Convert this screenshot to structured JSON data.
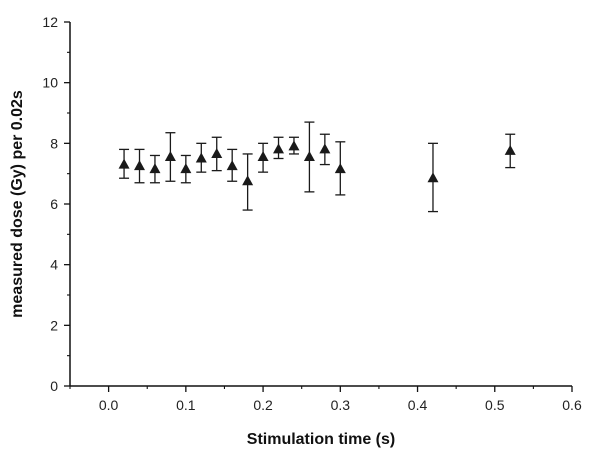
{
  "chart_data": {
    "type": "scatter",
    "xlabel": "Stimulation time (s)",
    "ylabel": "measured dose (Gy) per 0.02s",
    "xlim": [
      -0.05,
      0.6
    ],
    "ylim": [
      0,
      12
    ],
    "x_ticks": [
      0.0,
      0.1,
      0.2,
      0.3,
      0.4,
      0.5,
      0.6
    ],
    "x_tick_labels": [
      "0.0",
      "0.1",
      "0.2",
      "0.3",
      "0.4",
      "0.5",
      "0.6"
    ],
    "y_ticks": [
      0,
      2,
      4,
      6,
      8,
      10,
      12
    ],
    "y_tick_labels": [
      "0",
      "2",
      "4",
      "6",
      "8",
      "10",
      "12"
    ],
    "grid": false,
    "legend": "none",
    "marker": "triangle-up",
    "marker_color": "#1a1a1a",
    "series": [
      {
        "x": [
          0.02,
          0.04,
          0.06,
          0.08,
          0.1,
          0.12,
          0.14,
          0.16,
          0.18,
          0.2,
          0.22,
          0.24,
          0.26,
          0.28,
          0.3,
          0.42,
          0.52
        ],
        "y": [
          7.3,
          7.25,
          7.15,
          7.55,
          7.15,
          7.5,
          7.65,
          7.25,
          6.75,
          7.55,
          7.8,
          7.9,
          7.55,
          7.8,
          7.15,
          6.85,
          7.75
        ],
        "y_err_low": [
          6.85,
          6.7,
          6.7,
          6.75,
          6.7,
          7.05,
          7.1,
          6.75,
          5.8,
          7.05,
          7.5,
          7.65,
          6.4,
          7.3,
          6.3,
          5.75,
          7.2
        ],
        "y_err_high": [
          7.8,
          7.8,
          7.6,
          8.35,
          7.6,
          8.0,
          8.2,
          7.8,
          7.65,
          8.0,
          8.2,
          8.2,
          8.7,
          8.3,
          8.05,
          8.0,
          8.3
        ]
      }
    ]
  }
}
